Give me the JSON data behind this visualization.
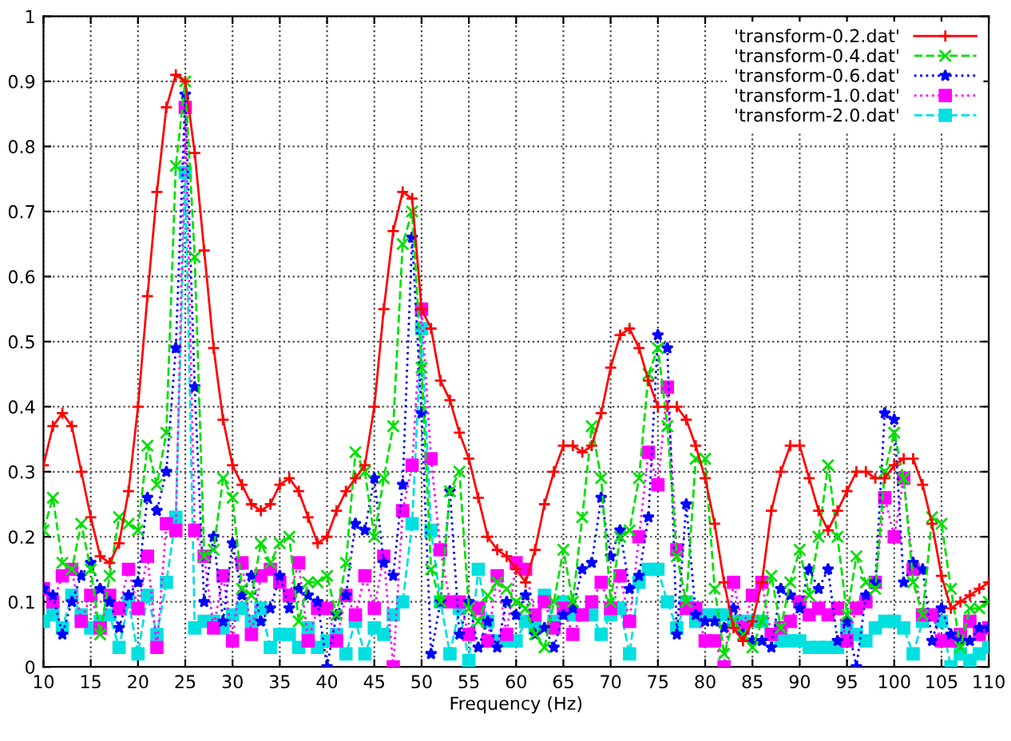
{
  "chart_data": {
    "type": "line",
    "xlabel": "Frequency (Hz)",
    "x": [
      10,
      11,
      12,
      13,
      14,
      15,
      16,
      17,
      18,
      19,
      20,
      21,
      22,
      23,
      24,
      25,
      26,
      27,
      28,
      29,
      30,
      31,
      32,
      33,
      34,
      35,
      36,
      37,
      38,
      39,
      40,
      41,
      42,
      43,
      44,
      45,
      46,
      47,
      48,
      49,
      50,
      51,
      52,
      53,
      54,
      55,
      56,
      57,
      58,
      59,
      60,
      61,
      62,
      63,
      64,
      65,
      66,
      67,
      68,
      69,
      70,
      71,
      72,
      73,
      74,
      75,
      76,
      77,
      78,
      79,
      80,
      81,
      82,
      83,
      84,
      85,
      86,
      87,
      88,
      89,
      90,
      91,
      92,
      93,
      94,
      95,
      96,
      97,
      98,
      99,
      100,
      101,
      102,
      103,
      104,
      105,
      106,
      107,
      108,
      109,
      110
    ],
    "xlim": [
      10,
      110
    ],
    "xticks": [
      10,
      15,
      20,
      25,
      30,
      35,
      40,
      45,
      50,
      55,
      60,
      65,
      70,
      75,
      80,
      85,
      90,
      95,
      100,
      105,
      110
    ],
    "ylim": [
      0,
      1
    ],
    "yticks": [
      0,
      0.1,
      0.2,
      0.3,
      0.4,
      0.5,
      0.6,
      0.7,
      0.8,
      0.9,
      1
    ],
    "grid": true,
    "legend": "top right",
    "series": [
      {
        "name": "'transform-0.2.dat'",
        "color": "#ff0000",
        "marker": "cross",
        "line_style": "solid",
        "values": [
          0.31,
          0.37,
          0.39,
          0.37,
          0.3,
          0.23,
          0.17,
          0.16,
          0.19,
          0.27,
          0.4,
          0.57,
          0.73,
          0.86,
          0.91,
          0.9,
          0.79,
          0.64,
          0.49,
          0.38,
          0.31,
          0.28,
          0.25,
          0.24,
          0.25,
          0.28,
          0.29,
          0.27,
          0.23,
          0.19,
          0.2,
          0.24,
          0.27,
          0.29,
          0.31,
          0.4,
          0.55,
          0.67,
          0.73,
          0.72,
          0.55,
          0.52,
          0.44,
          0.41,
          0.36,
          0.32,
          0.26,
          0.2,
          0.18,
          0.17,
          0.15,
          0.13,
          0.18,
          0.25,
          0.3,
          0.34,
          0.34,
          0.33,
          0.34,
          0.39,
          0.46,
          0.51,
          0.52,
          0.49,
          0.44,
          0.4,
          0.4,
          0.4,
          0.38,
          0.34,
          0.29,
          0.22,
          0.13,
          0.06,
          0.04,
          0.07,
          0.13,
          0.24,
          0.3,
          0.34,
          0.34,
          0.29,
          0.24,
          0.21,
          0.24,
          0.27,
          0.3,
          0.3,
          0.29,
          0.29,
          0.31,
          0.32,
          0.32,
          0.28,
          0.22,
          0.14,
          0.09,
          0.1,
          0.11,
          0.12,
          0.13
        ]
      },
      {
        "name": "'transform-0.4.dat'",
        "color": "#00e000",
        "marker": "x",
        "line_style": "dashed",
        "values": [
          0.21,
          0.26,
          0.16,
          0.15,
          0.22,
          0.15,
          0.05,
          0.14,
          0.23,
          0.22,
          0.21,
          0.34,
          0.28,
          0.36,
          0.77,
          0.9,
          0.63,
          0.17,
          0.18,
          0.29,
          0.26,
          0.12,
          0.11,
          0.19,
          0.16,
          0.19,
          0.2,
          0.07,
          0.13,
          0.13,
          0.14,
          0.08,
          0.16,
          0.33,
          0.3,
          0.2,
          0.29,
          0.37,
          0.65,
          0.7,
          0.46,
          0.15,
          0.1,
          0.27,
          0.3,
          0.09,
          0.07,
          0.11,
          0.13,
          0.12,
          0.1,
          0.09,
          0.05,
          0.03,
          0.1,
          0.18,
          0.1,
          0.23,
          0.37,
          0.29,
          0.1,
          0.2,
          0.21,
          0.29,
          0.45,
          0.49,
          0.37,
          0.17,
          0.1,
          0.32,
          0.32,
          0.12,
          0.02,
          0.07,
          0.05,
          0.03,
          0.07,
          0.14,
          0.06,
          0.13,
          0.18,
          0.11,
          0.2,
          0.31,
          0.2,
          0.08,
          0.17,
          0.13,
          0.12,
          0.3,
          0.36,
          0.29,
          0.13,
          0.08,
          0.23,
          0.22,
          0.12,
          0.03,
          0.09,
          0.09,
          0.1
        ]
      },
      {
        "name": "'transform-0.6.dat'",
        "color": "#0000ff",
        "marker": "star",
        "line_style": "dotted",
        "values": [
          0.12,
          0.11,
          0.05,
          0.1,
          0.14,
          0.16,
          0.12,
          0.1,
          0.06,
          0.11,
          0.13,
          0.26,
          0.24,
          0.3,
          0.49,
          0.88,
          0.43,
          0.1,
          0.2,
          0.07,
          0.19,
          0.11,
          0.14,
          0.07,
          0.09,
          0.14,
          0.09,
          0.12,
          0.11,
          0.1,
          0.0,
          0.08,
          0.11,
          0.22,
          0.21,
          0.29,
          0.16,
          0.14,
          0.28,
          0.66,
          0.39,
          0.02,
          0.1,
          0.27,
          0.05,
          0.1,
          0.03,
          0.07,
          0.03,
          0.1,
          0.08,
          0.11,
          0.05,
          0.06,
          0.03,
          0.08,
          0.09,
          0.15,
          0.16,
          0.26,
          0.17,
          0.21,
          0.12,
          0.14,
          0.23,
          0.51,
          0.49,
          0.05,
          0.25,
          0.08,
          0.07,
          0.07,
          0.06,
          0.09,
          0.05,
          0.04,
          0.04,
          0.03,
          0.12,
          0.11,
          0.09,
          0.15,
          0.12,
          0.15,
          0.04,
          0.07,
          0.0,
          0.11,
          0.13,
          0.39,
          0.38,
          0.13,
          0.16,
          0.15,
          0.04,
          0.09,
          0.05,
          0.04,
          0.04,
          0.06,
          0.06
        ]
      },
      {
        "name": "'transform-1.0.dat'",
        "color": "#ff00ff",
        "marker": "square",
        "line_style": "dotted",
        "values": [
          0.12,
          0.1,
          0.14,
          0.15,
          0.07,
          0.11,
          0.06,
          0.11,
          0.09,
          0.15,
          0.09,
          0.17,
          0.03,
          0.22,
          0.21,
          0.86,
          0.21,
          0.17,
          0.06,
          0.14,
          0.04,
          0.16,
          0.05,
          0.14,
          0.15,
          0.13,
          0.11,
          0.16,
          0.04,
          0.09,
          0.09,
          0.04,
          0.11,
          0.08,
          0.14,
          0.09,
          0.17,
          0.0,
          0.24,
          0.31,
          0.55,
          0.32,
          0.18,
          0.1,
          0.1,
          0.05,
          0.09,
          0.04,
          0.14,
          0.05,
          0.16,
          0.15,
          0.08,
          0.1,
          0.06,
          0.09,
          0.05,
          0.08,
          0.1,
          0.13,
          0.09,
          0.14,
          0.07,
          0.2,
          0.33,
          0.28,
          0.43,
          0.18,
          0.09,
          0.09,
          0.04,
          0.04,
          0.0,
          0.13,
          0.06,
          0.11,
          0.13,
          0.05,
          0.06,
          0.07,
          0.1,
          0.08,
          0.09,
          0.08,
          0.09,
          0.04,
          0.09,
          0.1,
          0.13,
          0.26,
          0.2,
          0.29,
          0.15,
          0.08,
          0.08,
          0.04,
          0.04,
          0.05,
          0.07,
          0.05,
          0.06
        ]
      },
      {
        "name": "'transform-2.0.dat'",
        "color": "#00e0e0",
        "marker": "square",
        "line_style": "dashed",
        "values": [
          0.07,
          0.08,
          0.06,
          0.11,
          0.08,
          0.06,
          0.07,
          0.08,
          0.03,
          0.1,
          0.02,
          0.11,
          0.05,
          0.13,
          0.23,
          0.76,
          0.06,
          0.07,
          0.07,
          0.06,
          0.08,
          0.09,
          0.07,
          0.09,
          0.03,
          0.05,
          0.05,
          0.03,
          0.06,
          0.03,
          0.04,
          0.05,
          0.02,
          0.07,
          0.02,
          0.06,
          0.05,
          0.08,
          0.1,
          0.22,
          0.52,
          0.21,
          0.1,
          0.02,
          0.09,
          0.01,
          0.15,
          0.07,
          0.04,
          0.04,
          0.04,
          0.07,
          0.06,
          0.11,
          0.07,
          0.1,
          0.08,
          0.08,
          0.08,
          0.05,
          0.08,
          0.09,
          0.02,
          0.13,
          0.15,
          0.15,
          0.1,
          0.06,
          0.1,
          0.07,
          0.08,
          0.08,
          0.08,
          0.07,
          0.07,
          0.07,
          0.07,
          0.05,
          0.04,
          0.04,
          0.04,
          0.03,
          0.03,
          0.03,
          0.03,
          0.06,
          0.05,
          0.04,
          0.06,
          0.07,
          0.07,
          0.06,
          0.02,
          0.07,
          0.08,
          0.07,
          0.0,
          0.02,
          0.01,
          0.02,
          0.03
        ]
      }
    ]
  }
}
